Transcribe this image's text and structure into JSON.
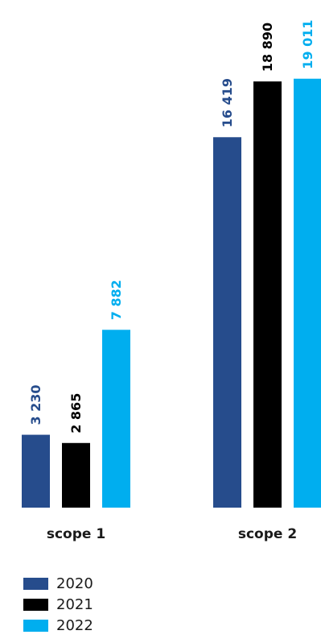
{
  "chart_data": {
    "type": "bar",
    "categories": [
      "scope 1",
      "scope 2"
    ],
    "series": [
      {
        "name": "2020",
        "values": [
          3230,
          16419
        ],
        "labels": [
          "3 230",
          "16 419"
        ],
        "color": "#264c8c"
      },
      {
        "name": "2021",
        "values": [
          2865,
          18890
        ],
        "labels": [
          "2 865",
          "18 890"
        ],
        "color": "#000000"
      },
      {
        "name": "2022",
        "values": [
          7882,
          19011
        ],
        "labels": [
          "7 882",
          "19 011"
        ],
        "color": "#00aeef"
      }
    ],
    "ylim": [
      0,
      20000
    ],
    "grid": false,
    "legend_position": "bottom-left"
  }
}
